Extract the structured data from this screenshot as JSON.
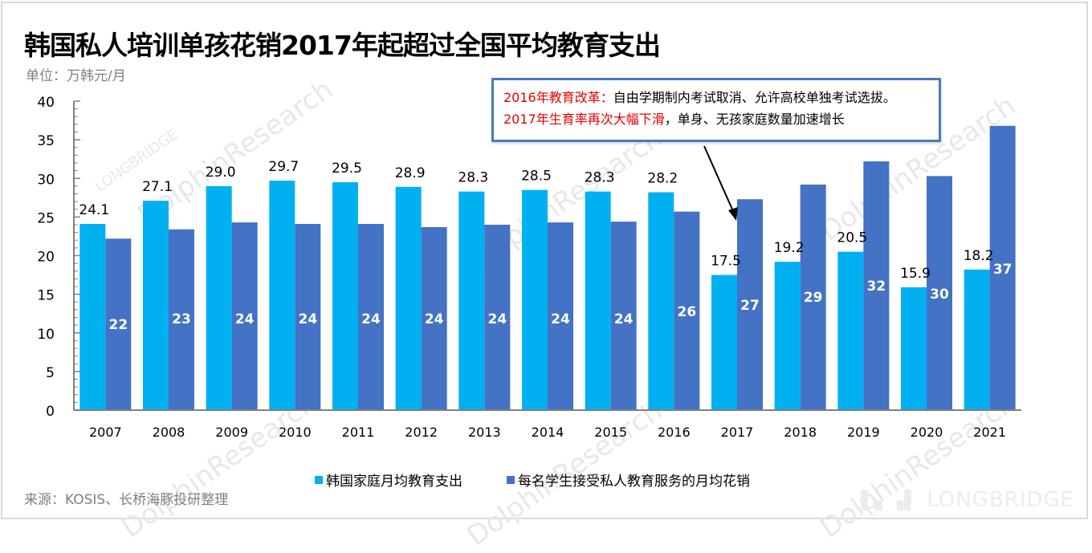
{
  "header": {
    "title": "韩国私人培训单孩花销2017年起超过全国平均教育支出",
    "unit": "单位：万韩元/月"
  },
  "callout": {
    "line1_red": "2016年教育改革：",
    "line1_black": "自由学期制内考试取消、允许高校单独考试选拔。",
    "line2_red": "2017年生育率再次大幅下滑",
    "line2_black": "，单身、无孩家庭数量加速增长"
  },
  "footer": {
    "source": "来源：KOSIS、长桥海豚投研整理",
    "watermark": "LONGBRIDGE"
  },
  "colors": {
    "series1": "#00b0f0",
    "series2": "#4472c4",
    "callout_border": "#4a7ab8",
    "highlight_red": "#e60000"
  },
  "chart_data": {
    "type": "bar",
    "title": "韩国私人培训单孩花销2017年起超过全国平均教育支出",
    "xlabel": "",
    "ylabel": "单位：万韩元/月",
    "ylim": [
      0,
      40
    ],
    "yticks": [
      0,
      5,
      10,
      15,
      20,
      25,
      30,
      35,
      40
    ],
    "grid": false,
    "legend_position": "bottom",
    "categories": [
      "2007",
      "2008",
      "2009",
      "2010",
      "2011",
      "2012",
      "2013",
      "2014",
      "2015",
      "2016",
      "2017",
      "2018",
      "2019",
      "2020",
      "2021"
    ],
    "series": [
      {
        "name": "韩国家庭月均教育支出",
        "values": [
          24.1,
          27.1,
          29.0,
          29.7,
          29.5,
          28.9,
          28.3,
          28.5,
          28.3,
          28.2,
          17.5,
          19.2,
          20.5,
          15.9,
          18.2
        ],
        "labels": [
          "24.1",
          "27.1",
          "29.0",
          "29.7",
          "29.5",
          "28.9",
          "28.3",
          "28.5",
          "28.3",
          "28.2",
          "17.5",
          "19.2",
          "20.5",
          "15.9",
          "18.2"
        ]
      },
      {
        "name": "每名学生接受私人教育服务的月均花销",
        "values": [
          22.2,
          23.4,
          24.3,
          24.1,
          24.1,
          23.7,
          24.0,
          24.3,
          24.4,
          25.7,
          27.3,
          29.2,
          32.2,
          30.3,
          36.8
        ],
        "labels": [
          "22",
          "23",
          "24",
          "24",
          "24",
          "24",
          "24",
          "24",
          "24",
          "26",
          "27",
          "29",
          "32",
          "30",
          "37"
        ]
      }
    ],
    "annotation_target": "2017"
  }
}
